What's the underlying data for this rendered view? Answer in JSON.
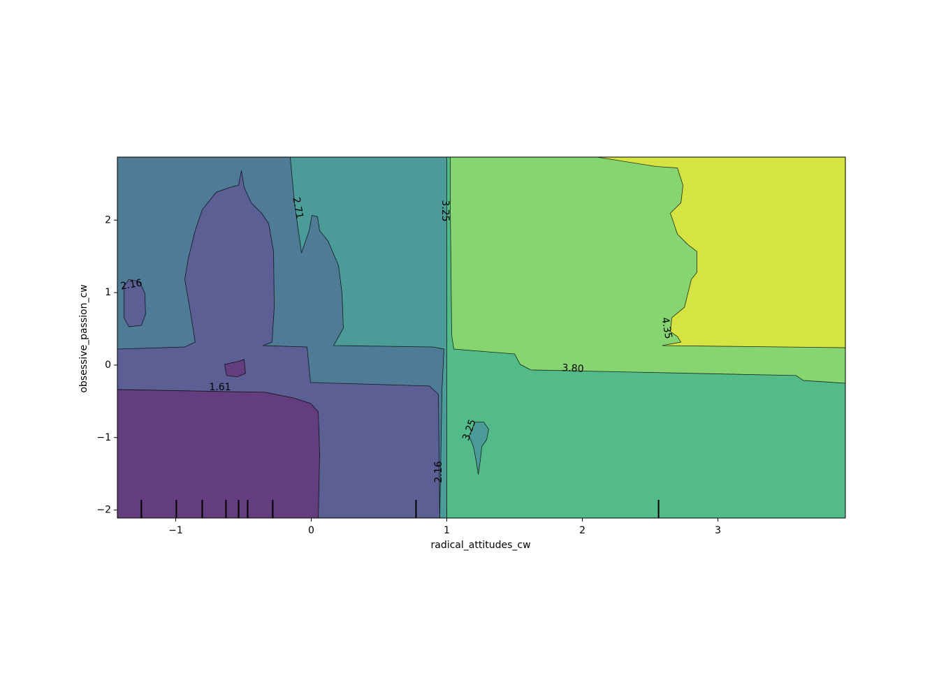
{
  "chart_data": {
    "type": "contour",
    "xlabel": "radical_attitudes_cw",
    "ylabel": "obsessive_passion_cw",
    "xlim": [
      -1.43,
      3.94
    ],
    "ylim": [
      -2.11,
      2.87
    ],
    "xticks": [
      {
        "value": -1,
        "label": "−1"
      },
      0,
      1,
      2,
      3
    ],
    "yticks": [
      {
        "value": -2,
        "label": "−2"
      },
      {
        "value": -1,
        "label": "−1"
      },
      0,
      1,
      2
    ],
    "levels": [
      1.61,
      2.16,
      2.71,
      3.25,
      3.8,
      4.35
    ],
    "level_labels": [
      "1.61",
      "2.16",
      "2.71",
      "3.25",
      "3.80",
      "4.35"
    ],
    "regions": [
      {
        "color": "#4f7b96",
        "x": [
          -1.43,
          3.94,
          3.94,
          -1.43
        ],
        "y": [
          2.87,
          2.87,
          -2.11,
          -2.11
        ]
      },
      {
        "color": "#4b9c98",
        "x": [
          -0.155,
          1.015,
          1.0,
          0.948,
          0.964,
          0.979,
          0.897,
          0.165,
          0.237,
          0.227,
          0.201,
          0.124,
          0.062,
          0.046,
          0.005,
          -0.015,
          -0.072,
          -0.124
        ],
        "y": [
          2.87,
          2.87,
          -2.11,
          -2.11,
          -0.356,
          0.221,
          0.25,
          0.269,
          0.51,
          0.99,
          1.375,
          1.712,
          1.856,
          2.048,
          2.067,
          1.856,
          1.548,
          2.24
        ]
      },
      {
        "color": "#53ba8a",
        "x": [
          1.0,
          3.94,
          3.94,
          1.0
        ],
        "y": [
          2.87,
          2.87,
          -2.11,
          -2.11
        ]
      },
      {
        "color": "#87d570",
        "x": [
          1.026,
          3.94,
          3.94,
          3.629,
          3.577,
          1.619,
          1.541,
          1.5,
          1.052,
          1.036,
          1.026
        ],
        "y": [
          2.87,
          2.87,
          -0.25,
          -0.212,
          -0.144,
          -0.067,
          0.01,
          0.154,
          0.221,
          0.413,
          2.144
        ]
      },
      {
        "color": "#d5e442",
        "x": [
          2.108,
          3.94,
          3.94,
          2.588,
          2.727,
          2.701,
          2.649,
          2.66,
          2.753,
          2.804,
          2.845,
          2.845,
          2.778,
          2.701,
          2.675,
          2.649,
          2.727,
          2.742,
          2.701,
          2.546
        ],
        "y": [
          2.87,
          2.87,
          0.24,
          0.269,
          0.317,
          0.394,
          0.462,
          0.654,
          0.798,
          1.183,
          1.279,
          1.567,
          1.663,
          1.808,
          1.952,
          2.096,
          2.24,
          2.481,
          2.721,
          2.74
        ]
      },
      {
        "color": "#4b9c98",
        "x": [
          1.206,
          1.273,
          1.309,
          1.294,
          1.258,
          1.247,
          1.232,
          1.216,
          1.196,
          1.165
        ],
        "y": [
          -0.788,
          -0.788,
          -0.885,
          -1.029,
          -1.125,
          -1.317,
          -1.51,
          -1.317,
          -1.125,
          -0.981
        ]
      },
      {
        "color": "#5b5f94",
        "x": [
          -1.43,
          -0.933,
          -0.856,
          -0.897,
          -0.933,
          -0.907,
          -0.856,
          -0.804,
          -0.701,
          -0.598,
          -0.536,
          -0.515,
          -0.495,
          -0.443,
          -0.366,
          -0.314,
          -0.278,
          -0.273,
          -0.289,
          -0.356,
          -0.031,
          -0.005,
          0.871,
          0.938,
          0.948,
          -1.43
        ],
        "y": [
          0.221,
          0.25,
          0.317,
          0.798,
          1.183,
          1.471,
          1.856,
          2.144,
          2.385,
          2.452,
          2.481,
          2.683,
          2.452,
          2.24,
          2.096,
          1.952,
          1.567,
          0.798,
          0.317,
          0.269,
          0.25,
          -0.24,
          -0.288,
          -0.404,
          -2.11,
          -2.11
        ]
      },
      {
        "color": "#633d7d",
        "x": [
          -1.43,
          -0.34,
          -0.134,
          -0.005,
          0.052,
          0.062,
          0.052,
          -1.43
        ],
        "y": [
          -0.337,
          -0.375,
          -0.452,
          -0.529,
          -0.644,
          -1.221,
          -2.11,
          -2.11
        ]
      },
      {
        "color": "#5b5f94",
        "x": [
          -1.381,
          -1.345,
          -1.268,
          -1.227,
          -1.222,
          -1.253,
          -1.345,
          -1.381
        ],
        "y": [
          1.087,
          1.183,
          1.154,
          0.99,
          0.702,
          0.548,
          0.529,
          0.654
        ]
      },
      {
        "color": "#633d7d",
        "x": [
          -0.639,
          -0.546,
          -0.495,
          -0.485,
          -0.546,
          -0.624
        ],
        "y": [
          0.01,
          0.048,
          0.077,
          -0.115,
          -0.163,
          -0.144
        ]
      }
    ],
    "deciles_x": [
      -1.253,
      -0.995,
      -0.804,
      -0.629,
      -0.536,
      -0.469,
      -0.284,
      0.773,
      2.562
    ]
  }
}
